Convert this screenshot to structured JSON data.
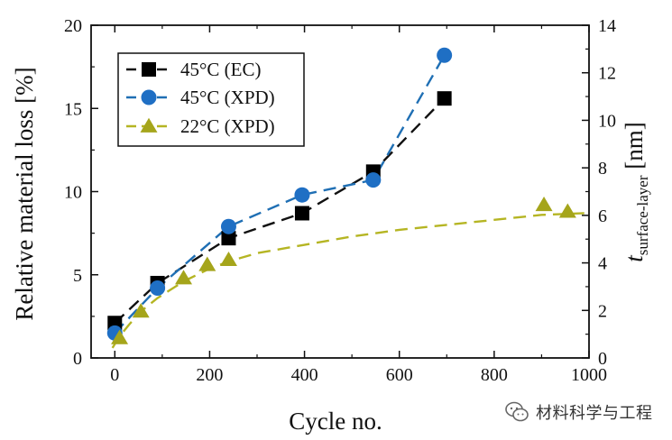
{
  "chart_data": {
    "type": "line",
    "title": "",
    "xlabel": "Cycle no.",
    "ylabel": "Relative material loss [%]",
    "y2label": {
      "main": "t",
      "sub": "surface-layer",
      "unit": " [nm]"
    },
    "xlim": [
      -50,
      1000
    ],
    "ylim": [
      0,
      20
    ],
    "y2lim": [
      0,
      14
    ],
    "xticks": [
      0,
      200,
      400,
      600,
      800,
      1000
    ],
    "yticks": [
      0,
      5,
      10,
      15,
      20
    ],
    "y2ticks": [
      0,
      2,
      4,
      6,
      8,
      10,
      12,
      14
    ],
    "grid": false,
    "legend_position": "top-left",
    "series": [
      {
        "name": "45°C (EC)",
        "marker": "square",
        "color": "#111111",
        "markerColor": "#000000",
        "x": [
          0,
          90,
          240,
          395,
          545,
          695
        ],
        "y": [
          2.1,
          4.5,
          7.2,
          8.7,
          11.2,
          15.6
        ]
      },
      {
        "name": "45°C (XPD)",
        "marker": "circle",
        "color": "#1f6fb4",
        "markerColor": "#1f6fc4",
        "x": [
          0,
          90,
          240,
          395,
          545,
          695
        ],
        "y": [
          1.5,
          4.2,
          7.9,
          9.8,
          10.7,
          18.2
        ]
      },
      {
        "name": "22°C (XPD)",
        "marker": "triangle",
        "color": "#b5b523",
        "markerColor": "#a5a51b",
        "x": [
          10,
          55,
          145,
          195,
          240,
          905,
          955
        ],
        "y": [
          1.2,
          2.8,
          4.8,
          5.6,
          5.9,
          9.2,
          8.8
        ],
        "fit_curve": {
          "x": [
            -5,
            10,
            30,
            55,
            90,
            145,
            195,
            240,
            300,
            400,
            500,
            600,
            700,
            800,
            900,
            990
          ],
          "y": [
            0.6,
            1.3,
            2.0,
            2.8,
            3.6,
            4.6,
            5.3,
            5.8,
            6.3,
            6.8,
            7.3,
            7.7,
            8.0,
            8.3,
            8.6,
            8.7
          ]
        }
      }
    ]
  },
  "watermark": {
    "text": "材料科学与工程"
  }
}
